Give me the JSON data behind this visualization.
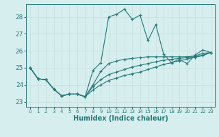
{
  "xlabel": "Humidex (Indice chaleur)",
  "ylabel": "",
  "background_color": "#d6eeee",
  "line_color": "#2a7a7a",
  "grid_color": "#c8e0e0",
  "xlim": [
    -0.5,
    23.5
  ],
  "ylim": [
    22.7,
    28.75
  ],
  "xticks": [
    0,
    1,
    2,
    3,
    4,
    5,
    6,
    7,
    8,
    9,
    10,
    11,
    12,
    13,
    14,
    15,
    16,
    17,
    18,
    19,
    20,
    21,
    22,
    23
  ],
  "yticks": [
    23,
    24,
    25,
    26,
    27,
    28
  ],
  "series": [
    [
      25.0,
      24.35,
      24.3,
      23.75,
      23.35,
      23.45,
      23.45,
      23.3,
      24.85,
      25.3,
      28.0,
      28.15,
      28.45,
      27.85,
      28.1,
      26.6,
      27.55,
      25.8,
      25.3,
      25.5,
      25.25,
      25.75,
      26.05,
      25.9
    ],
    [
      25.0,
      24.35,
      24.3,
      23.75,
      23.35,
      23.45,
      23.45,
      23.3,
      24.0,
      24.8,
      25.25,
      25.4,
      25.5,
      25.55,
      25.6,
      25.65,
      25.65,
      25.65,
      25.65,
      25.65,
      25.65,
      25.7,
      25.85,
      25.9
    ],
    [
      25.0,
      24.35,
      24.3,
      23.75,
      23.35,
      23.45,
      23.45,
      23.3,
      23.9,
      24.3,
      24.6,
      24.75,
      24.9,
      25.05,
      25.15,
      25.25,
      25.35,
      25.45,
      25.5,
      25.55,
      25.6,
      25.65,
      25.75,
      25.9
    ],
    [
      25.0,
      24.35,
      24.3,
      23.75,
      23.35,
      23.45,
      23.45,
      23.3,
      23.7,
      24.0,
      24.25,
      24.4,
      24.55,
      24.65,
      24.75,
      24.9,
      25.05,
      25.2,
      25.3,
      25.42,
      25.52,
      25.62,
      25.72,
      25.9
    ]
  ]
}
